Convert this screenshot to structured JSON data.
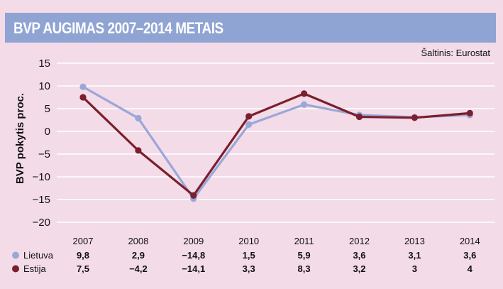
{
  "title": "BVP AUGIMAS 2007–2014 METAIS",
  "source": "Šaltinis: Eurostat",
  "colors": {
    "background": "#f3dbe8",
    "title_bar": "#90a4d4",
    "lietuva": "#9aa7d8",
    "estija": "#7a1f2c",
    "grid": "#ffffff"
  },
  "chart_data": {
    "type": "line",
    "title": "BVP AUGIMAS 2007–2014 METAIS",
    "ylabel": "BVP pokytis proc.",
    "xlabel": "",
    "ylim": [
      -20,
      15
    ],
    "yticks": [
      15,
      10,
      5,
      0,
      -5,
      -10,
      -15,
      -20
    ],
    "ytick_labels": [
      "15",
      "10",
      "5",
      "0",
      "−5",
      "−10",
      "−15",
      "−20"
    ],
    "categories": [
      "2007",
      "2008",
      "2009",
      "2010",
      "2011",
      "2012",
      "2013",
      "2014"
    ],
    "grid": true,
    "legend_position": "bottom-left",
    "series": [
      {
        "name": "Lietuva",
        "color": "#9aa7d8",
        "values": [
          9.8,
          2.9,
          -14.8,
          1.5,
          5.9,
          3.6,
          3.1,
          3.6
        ],
        "labels": [
          "9,8",
          "2,9",
          "−14,8",
          "1,5",
          "5,9",
          "3,6",
          "3,1",
          "3,6"
        ]
      },
      {
        "name": "Estija",
        "color": "#7a1f2c",
        "values": [
          7.5,
          -4.2,
          -14.1,
          3.3,
          8.3,
          3.2,
          3.0,
          4.0
        ],
        "labels": [
          "7,5",
          "−4,2",
          "−14,1",
          "3,3",
          "8,3",
          "3,2",
          "3",
          "4"
        ]
      }
    ]
  }
}
